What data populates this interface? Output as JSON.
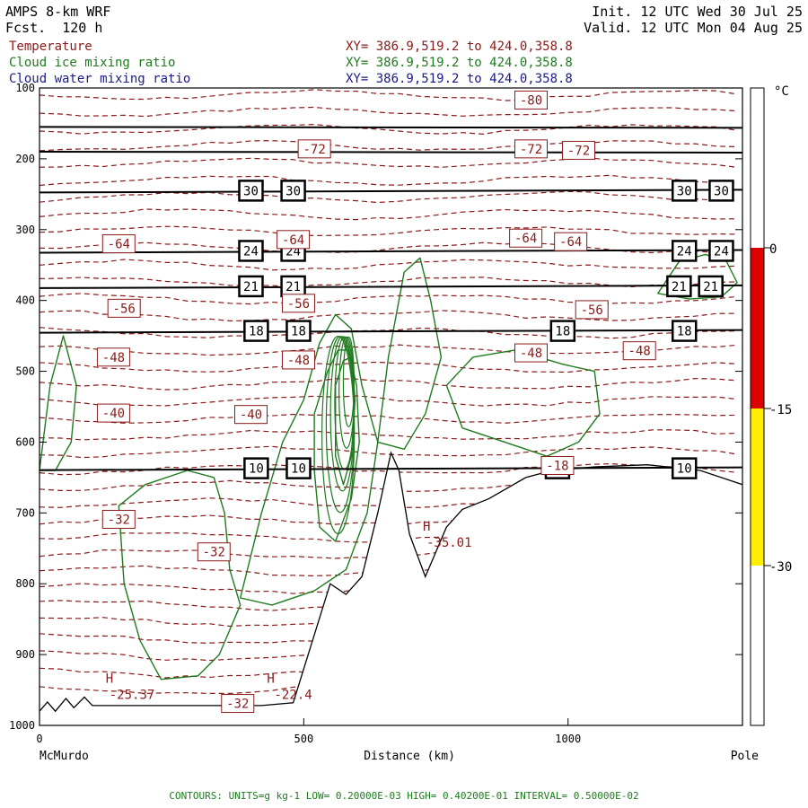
{
  "header": {
    "model": "AMPS 8-km WRF",
    "fcst_label": "Fcst.",
    "fcst_value": "120 h",
    "init_label": "Init.",
    "init_value": "12 UTC Wed 30 Jul 25",
    "valid_label": "Valid.",
    "valid_value": "12 UTC Mon 04 Aug 25",
    "fields": [
      {
        "name": "Temperature",
        "xy": "XY= 386.9,519.2 to 424.0,358.8",
        "color": "#8b1a1a"
      },
      {
        "name": "Cloud ice mixing ratio",
        "xy": "XY= 386.9,519.2 to 424.0,358.8",
        "color": "#1e7b1e"
      },
      {
        "name": "Cloud water mixing ratio",
        "xy": "XY= 386.9,519.2 to 424.0,358.8",
        "color": "#1a1a8b"
      }
    ]
  },
  "chart_data": {
    "type": "cross-section contour",
    "xlabel": "Distance (km)",
    "x_start_label": "McMurdo",
    "x_end_label": "Pole",
    "xlim": [
      0,
      1330
    ],
    "xticks": [
      0,
      500,
      1000
    ],
    "ylabel": "",
    "ylim": [
      1000,
      100
    ],
    "yticks": [
      100,
      200,
      300,
      400,
      500,
      600,
      700,
      800,
      900,
      1000
    ],
    "theta_lines": [
      {
        "label": "30",
        "p": 245,
        "labels_at": [
          400,
          480,
          1220,
          1290
        ]
      },
      {
        "label": "24",
        "p": 330,
        "labels_at": [
          400,
          480,
          1220,
          1290
        ]
      },
      {
        "label": "21",
        "p": 380,
        "labels_at": [
          400,
          480,
          1210,
          1270
        ]
      },
      {
        "label": "18",
        "p": 443,
        "labels_at": [
          410,
          490,
          990,
          1220
        ]
      },
      {
        "label": "10",
        "p": 637,
        "labels_at": [
          410,
          490,
          980,
          1220
        ]
      }
    ],
    "theta_unlabeled_p": [
      155,
      190
    ],
    "temperature_labels": [
      {
        "text": "-80",
        "x": 930,
        "p": 117
      },
      {
        "text": "-72",
        "x": 520,
        "p": 186
      },
      {
        "text": "-72",
        "x": 930,
        "p": 186
      },
      {
        "text": "-72",
        "x": 1020,
        "p": 188
      },
      {
        "text": "-64",
        "x": 150,
        "p": 320
      },
      {
        "text": "-64",
        "x": 480,
        "p": 314
      },
      {
        "text": "-64",
        "x": 920,
        "p": 312
      },
      {
        "text": "-64",
        "x": 1005,
        "p": 317
      },
      {
        "text": "-56",
        "x": 160,
        "p": 411
      },
      {
        "text": "-56",
        "x": 490,
        "p": 404
      },
      {
        "text": "-56",
        "x": 1045,
        "p": 413
      },
      {
        "text": "-48",
        "x": 140,
        "p": 480
      },
      {
        "text": "-48",
        "x": 490,
        "p": 484
      },
      {
        "text": "-48",
        "x": 930,
        "p": 474
      },
      {
        "text": "-48",
        "x": 1135,
        "p": 471
      },
      {
        "text": "-40",
        "x": 140,
        "p": 559
      },
      {
        "text": "-40",
        "x": 400,
        "p": 561
      },
      {
        "text": "-32",
        "x": 150,
        "p": 709
      },
      {
        "text": "-32",
        "x": 330,
        "p": 755
      },
      {
        "text": "-32",
        "x": 375,
        "p": 969
      },
      {
        "text": "-18",
        "x": 980,
        "p": 633
      }
    ],
    "extrema": [
      {
        "mark": "H",
        "value": "-25.37",
        "x": 175,
        "p": 950
      },
      {
        "mark": "H",
        "value": "-22.4",
        "x": 480,
        "p": 950
      },
      {
        "mark": "H",
        "value": "-35.01",
        "x": 775,
        "p": 735
      }
    ],
    "colorbar": {
      "unit": "°C",
      "levels": [
        "0",
        "-15",
        "-30"
      ],
      "colors": {
        "above_0": "#ffffff",
        "0_to_-15": "#dd0000",
        "-15_to_-30": "#ffee00",
        "below_-30": "#ffffff"
      }
    }
  },
  "footer": {
    "text": "CONTOURS:  UNITS=g kg-1  LOW= 0.20000E-03  HIGH= 0.40200E-01  INTERVAL=  0.50000E-02"
  }
}
